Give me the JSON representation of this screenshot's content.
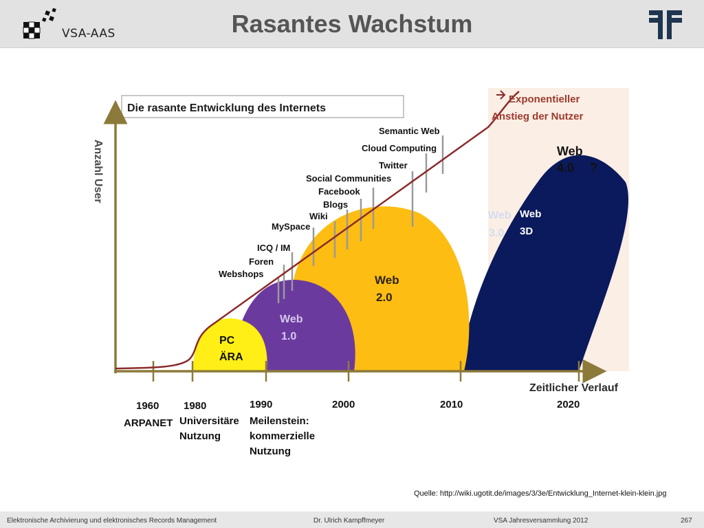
{
  "header": {
    "title": "Rasantes Wachstum",
    "logo_text": "VSA-AAS"
  },
  "diagram": {
    "box_title": "Die rasante Entwicklung des Internets",
    "y_axis_label": "Anzahl User",
    "x_axis_label": "Zeitlicher Verlauf",
    "growth_label_line1": "Exponentieller",
    "growth_label_line2": "Anstieg der Nutzer",
    "eras": [
      {
        "line1": "PC",
        "line2": "ÄRA",
        "color": "#ffef16"
      },
      {
        "line1": "Web",
        "line2": "1.0",
        "color": "#6b3a9f"
      },
      {
        "line1": "Web",
        "line2": "2.0",
        "color": "#fdbd12"
      },
      {
        "line1": "Web",
        "line2": "3.0",
        "color": "#0b1a5c"
      },
      {
        "line1": "Web",
        "line2": "3D",
        "color": "#0b1a5c"
      },
      {
        "line1": "Web",
        "line2": "4.0",
        "extra": "?"
      }
    ],
    "milestones": [
      "Webshops",
      "Foren",
      "ICQ / IM",
      "MySpace",
      "Wiki",
      "Blogs",
      "Facebook",
      "Social Communities",
      "Twitter",
      "Cloud Computing",
      "Semantic Web"
    ],
    "years": [
      "1960",
      "1980",
      "1990",
      "2000",
      "2010",
      "2020"
    ],
    "year_notes": {
      "n1960": [
        "ARPANET"
      ],
      "n1980": [
        "Universitäre",
        "Nutzung"
      ],
      "n1990": [
        "Meilenstein:",
        "kommerzielle",
        "Nutzung"
      ]
    },
    "curve_color": "#8b2a2a"
  },
  "source": "Quelle: http://wiki.ugotit.de/images/3/3e/Entwicklung_Internet-klein-klein.jpg",
  "footer": {
    "left": "Elektronische Archivierung und elektronisches Records Management",
    "center": "Dr. Ulrich Kampffmeyer",
    "right": "VSA Jahresversammlung 2012",
    "page": "267"
  }
}
